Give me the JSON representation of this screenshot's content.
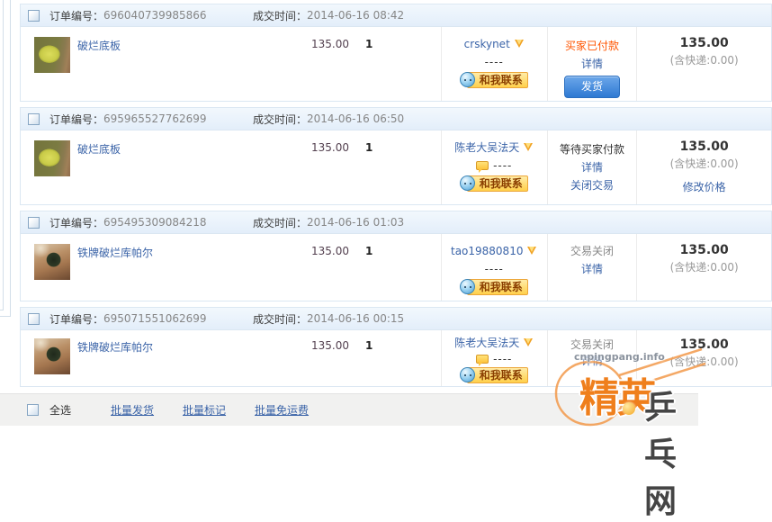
{
  "labels": {
    "order_no": "订单编号：",
    "deal_time": "成交时间：",
    "contact": "和我联系"
  },
  "colors": {
    "link_blue": "#3b64a8",
    "status_paid": "#ff5500",
    "status_waiting": "#333333",
    "status_closed": "#888888",
    "ship_button_blue": "#2e79d2",
    "contact_button_yellow": "#ffd04b",
    "watermark_orange": "#ef7f1c"
  },
  "orders": [
    {
      "order_no": "696040739985866",
      "deal_time": "2014-06-16 08:42",
      "product": {
        "title": "破烂底板",
        "price": "135.00",
        "qty": "1",
        "thumb": "thumb-blade"
      },
      "buyer": {
        "name": "crskynet",
        "dashes": "----",
        "has_bubble": false
      },
      "status": {
        "text": "买家已付款",
        "color": "#ff5500",
        "links": [
          "详情"
        ],
        "button": "发货"
      },
      "total": {
        "amount": "135.00",
        "note": "(含快递:0.00)",
        "links": []
      }
    },
    {
      "order_no": "695965527762699",
      "deal_time": "2014-06-16 06:50",
      "product": {
        "title": "破烂底板",
        "price": "135.00",
        "qty": "1",
        "thumb": "thumb-blade"
      },
      "buyer": {
        "name": "陈老大吴法天",
        "dashes": "----",
        "has_bubble": true
      },
      "status": {
        "text": "等待买家付款",
        "color": "#333333",
        "links": [
          "详情",
          "关闭交易"
        ],
        "button": null
      },
      "total": {
        "amount": "135.00",
        "note": "(含快递:0.00)",
        "links": [
          "修改价格"
        ]
      }
    },
    {
      "order_no": "695495309084218",
      "deal_time": "2014-06-16 01:03",
      "product": {
        "title": "铁牌破烂库帕尔",
        "price": "135.00",
        "qty": "1",
        "thumb": "thumb-hand"
      },
      "buyer": {
        "name": "tao19880810",
        "dashes": "----",
        "has_bubble": false
      },
      "status": {
        "text": "交易关闭",
        "color": "#888888",
        "links": [
          "详情"
        ],
        "button": null
      },
      "total": {
        "amount": "135.00",
        "note": "(含快递:0.00)",
        "links": []
      }
    },
    {
      "order_no": "695071551062699",
      "deal_time": "2014-06-16 00:15",
      "product": {
        "title": "铁牌破烂库帕尔",
        "price": "135.00",
        "qty": "1",
        "thumb": "thumb-hand"
      },
      "buyer": {
        "name": "陈老大吴法天",
        "dashes": "----",
        "has_bubble": true
      },
      "status": {
        "text": "交易关闭",
        "color": "#888888",
        "links": [
          "详情"
        ],
        "button": null
      },
      "total": {
        "amount": "135.00",
        "note": "(含快递:0.00)",
        "links": []
      }
    }
  ],
  "footer": {
    "select_all": "全选",
    "actions": [
      "批量发货",
      "批量标记",
      "批量免运费"
    ]
  },
  "watermark": {
    "site": "cnpingpang.info",
    "brand_orange": "精英",
    "brand_dark": "乒乓网"
  }
}
